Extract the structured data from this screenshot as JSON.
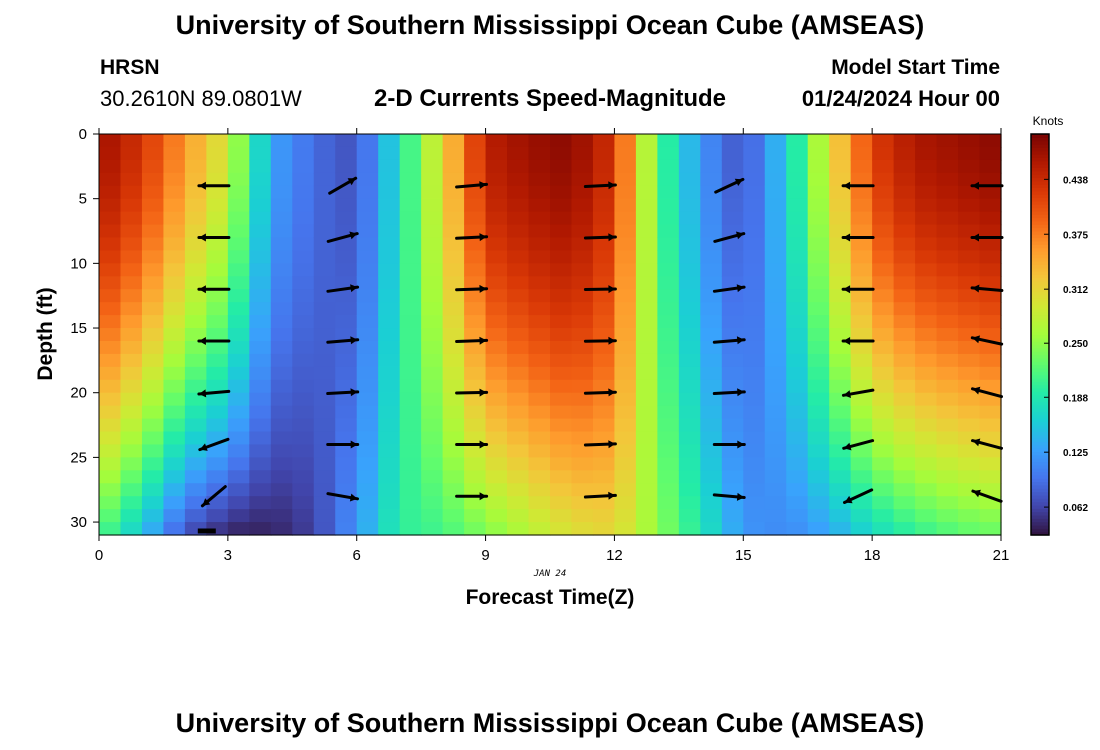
{
  "header": {
    "title": "University of Southern Mississippi Ocean Cube (AMSEAS)",
    "station": "HRSN",
    "coords": "30.2610N  89.0801W",
    "subtitle": "2-D Currents Speed-Magnitude",
    "model_start_label": "Model Start Time",
    "model_start_value": "01/24/2024 Hour 00",
    "footer_title": "University of Southern Mississippi Ocean Cube (AMSEAS)"
  },
  "colors": {
    "colormap": [
      "#30123b",
      "#4145ab",
      "#4675ed",
      "#39a2fc",
      "#1bcfd4",
      "#24eca6",
      "#61fc6c",
      "#a4fc3b",
      "#d1e834",
      "#f3c63a",
      "#fe9b2d",
      "#f36315",
      "#d93806",
      "#b11901",
      "#7a0402"
    ]
  },
  "chart_data": {
    "type": "heatmap",
    "xlabel": "Forecast Time(Z)",
    "ylabel": "Depth (ft)",
    "date_label": "JAN 24",
    "xlim": [
      0,
      21
    ],
    "ylim": [
      0,
      31
    ],
    "x_ticks": [
      0,
      3,
      6,
      9,
      12,
      15,
      18,
      21
    ],
    "y_ticks": [
      0,
      5,
      10,
      15,
      20,
      25,
      30
    ],
    "colorbar_label": "Knots",
    "colorbar_range": [
      0.03,
      0.49
    ],
    "colorbar_ticks": [
      "0.062",
      "0.125",
      "0.188",
      "0.250",
      "0.312",
      "0.375",
      "0.438"
    ],
    "times": [
      0,
      1,
      2,
      3,
      4,
      5,
      6,
      7,
      8,
      9,
      10,
      11,
      12,
      13,
      14,
      15,
      16,
      17,
      18,
      19,
      20,
      21
    ],
    "surface_speed_knots": [
      0.47,
      0.43,
      0.36,
      0.29,
      0.13,
      0.09,
      0.07,
      0.18,
      0.31,
      0.45,
      0.47,
      0.48,
      0.43,
      0.22,
      0.12,
      0.07,
      0.16,
      0.3,
      0.42,
      0.46,
      0.47,
      0.48
    ],
    "bottom_speed_knots": [
      0.22,
      0.15,
      0.07,
      0.04,
      0.04,
      0.06,
      0.12,
      0.2,
      0.21,
      0.24,
      0.27,
      0.3,
      0.31,
      0.25,
      0.19,
      0.12,
      0.11,
      0.13,
      0.17,
      0.2,
      0.22,
      0.23
    ],
    "vector_times": [
      3,
      6,
      9,
      12,
      15,
      18,
      21
    ],
    "vector_depths": [
      4,
      8,
      12,
      16,
      20,
      24,
      28
    ],
    "vector_directions_deg": [
      [
        180,
        180,
        180,
        180,
        185,
        200,
        220
      ],
      [
        30,
        15,
        8,
        5,
        3,
        0,
        -10
      ],
      [
        5,
        3,
        2,
        2,
        1,
        0,
        0
      ],
      [
        3,
        2,
        1,
        1,
        2,
        2,
        3
      ],
      [
        25,
        15,
        8,
        5,
        3,
        0,
        -5
      ],
      [
        180,
        180,
        180,
        180,
        190,
        195,
        205
      ],
      [
        180,
        180,
        175,
        168,
        165,
        165,
        160
      ]
    ],
    "bottom_depth_ft": 30.5
  }
}
